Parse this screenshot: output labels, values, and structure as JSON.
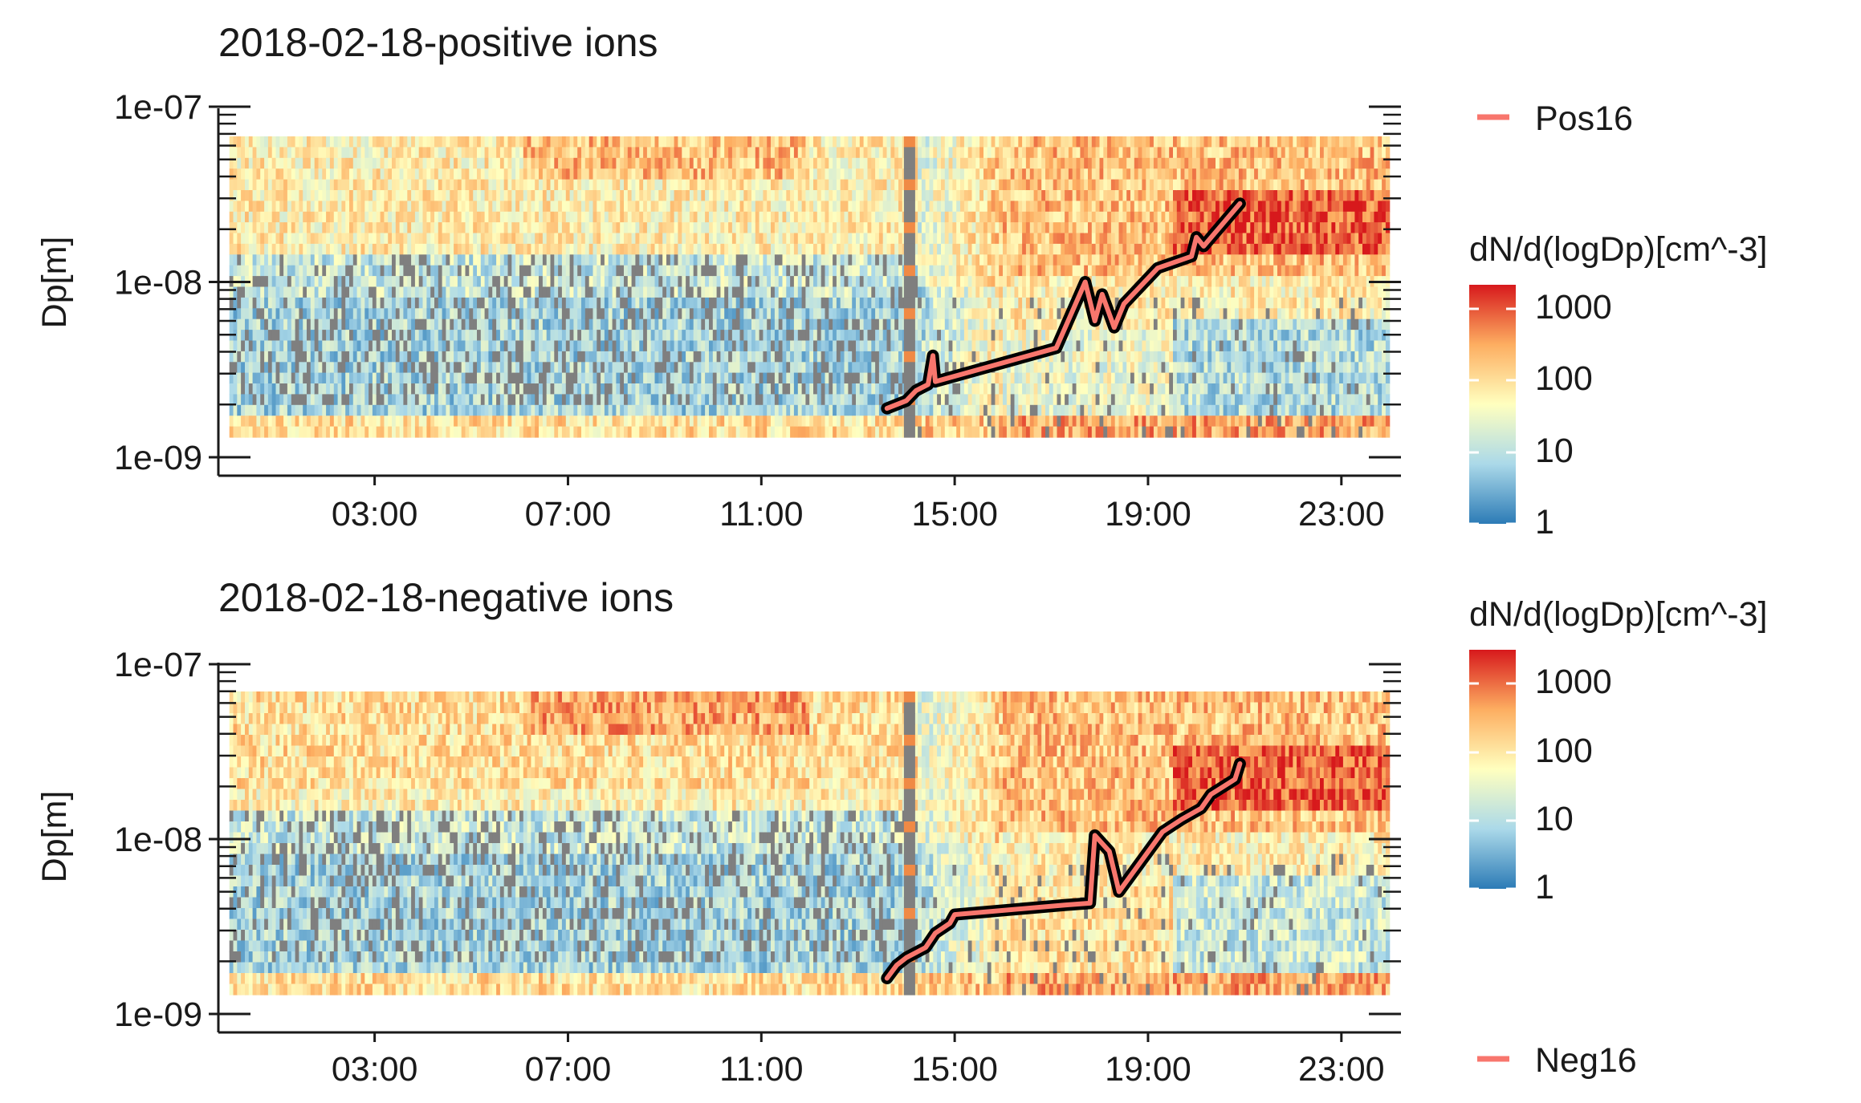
{
  "chart_data": [
    {
      "type": "heatmap",
      "title": "2018-02-18-positive ions",
      "xlabel": "",
      "ylabel": "Dp[m]",
      "x_ticks": [
        "03:00",
        "07:00",
        "11:00",
        "15:00",
        "19:00",
        "23:00"
      ],
      "y_ticks": [
        "1e-07",
        "1e-08",
        "1e-09"
      ],
      "y_scale": "log",
      "ylim": [
        1e-09,
        1e-07
      ],
      "x_range_hours": [
        0,
        24
      ],
      "colorbar": {
        "title": "dN/d(logDp)[cm^-3]",
        "scale": "log",
        "labels": [
          "1000",
          "100",
          "10",
          "1"
        ],
        "range": [
          1,
          3000
        ],
        "colors": [
          "#2c7bb6",
          "#abd9e9",
          "#ffffbf",
          "#fdae61",
          "#d7191c"
        ]
      },
      "missing_color": "#7f7f7f",
      "series": [
        {
          "name": "Pos16",
          "color": "#f8766d",
          "x": [
            13.6,
            14.0,
            14.2,
            14.45,
            14.55,
            14.6,
            17.1,
            17.7,
            17.9,
            18.05,
            18.3,
            18.5,
            19.2,
            19.9,
            20.0,
            20.15,
            20.9
          ],
          "y": [
            1.9e-09,
            2.1e-09,
            2.4e-09,
            2.6e-09,
            3.8e-09,
            2.7e-09,
            4.2e-09,
            1e-08,
            6e-09,
            8.5e-09,
            5.5e-09,
            7.5e-09,
            1.2e-08,
            1.4e-08,
            1.8e-08,
            1.6e-08,
            2.8e-08
          ]
        }
      ]
    },
    {
      "type": "heatmap",
      "title": "2018-02-18-negative ions",
      "xlabel": "",
      "ylabel": "Dp[m]",
      "x_ticks": [
        "03:00",
        "07:00",
        "11:00",
        "15:00",
        "19:00",
        "23:00"
      ],
      "y_ticks": [
        "1e-07",
        "1e-08",
        "1e-09"
      ],
      "y_scale": "log",
      "ylim": [
        1e-09,
        1e-07
      ],
      "x_range_hours": [
        0,
        24
      ],
      "colorbar": {
        "title": "dN/d(logDp)[cm^-3]",
        "scale": "log",
        "labels": [
          "1000",
          "100",
          "10",
          "1"
        ],
        "range": [
          1,
          3000
        ],
        "colors": [
          "#2c7bb6",
          "#abd9e9",
          "#ffffbf",
          "#fdae61",
          "#d7191c"
        ]
      },
      "missing_color": "#7f7f7f",
      "series": [
        {
          "name": "Neg16",
          "color": "#f8766d",
          "x": [
            13.6,
            13.8,
            14.0,
            14.4,
            14.6,
            14.9,
            15.0,
            17.3,
            17.8,
            17.9,
            18.2,
            18.4,
            19.3,
            19.7,
            20.1,
            20.3,
            20.8,
            20.9
          ],
          "y": [
            1.6e-09,
            1.9e-09,
            2.1e-09,
            2.4e-09,
            2.9e-09,
            3.3e-09,
            3.7e-09,
            4.2e-09,
            4.3e-09,
            1.05e-08,
            8.5e-09,
            5e-09,
            1.1e-08,
            1.3e-08,
            1.5e-08,
            1.8e-08,
            2.2e-08,
            2.7e-08
          ]
        }
      ]
    }
  ]
}
